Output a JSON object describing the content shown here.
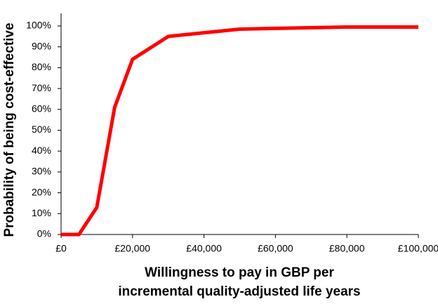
{
  "chart_data": {
    "type": "line",
    "x_label": [
      "Willingness to pay in GBP per",
      "incremental quality-adjusted life years"
    ],
    "y_label": "Probability of being cost-effective",
    "x": [
      0,
      5000,
      10000,
      15000,
      20000,
      30000,
      50000,
      80000,
      100000
    ],
    "series": [
      {
        "color": "#ff0000",
        "values": [
          0,
          0,
          13,
          61,
          84,
          95,
          98.5,
          99.5,
          99.5
        ]
      }
    ],
    "xlim": [
      0,
      100000
    ],
    "xticks": [
      {
        "value": 0,
        "label": "£0"
      },
      {
        "value": 20000,
        "label": "£20,000"
      },
      {
        "value": 40000,
        "label": "£40,000"
      },
      {
        "value": 60000,
        "label": "£60,000"
      },
      {
        "value": 80000,
        "label": "£80,000"
      },
      {
        "value": 100000,
        "label": "£100,000"
      }
    ],
    "ylim": [
      0,
      100
    ],
    "yticks": [
      {
        "value": 0,
        "label": "0%"
      },
      {
        "value": 10,
        "label": "10%"
      },
      {
        "value": 20,
        "label": "20%"
      },
      {
        "value": 30,
        "label": "30%"
      },
      {
        "value": 40,
        "label": "40%"
      },
      {
        "value": 50,
        "label": "50%"
      },
      {
        "value": 60,
        "label": "60%"
      },
      {
        "value": 70,
        "label": "70%"
      },
      {
        "value": 80,
        "label": "80%"
      },
      {
        "value": 90,
        "label": "90%"
      },
      {
        "value": 100,
        "label": "100%"
      }
    ],
    "grid": false
  }
}
